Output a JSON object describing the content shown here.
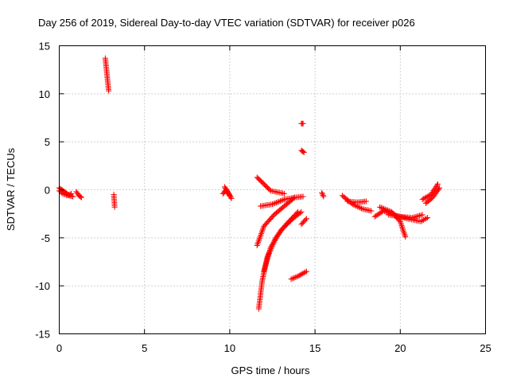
{
  "chart_data": {
    "type": "scatter",
    "title": "Day 256 of 2019, Sidereal Day-to-day VTEC variation (SDTVAR) for receiver p026",
    "xlabel": "GPS time / hours",
    "ylabel": "SDTVAR / TECUs",
    "xlim": [
      0,
      25
    ],
    "ylim": [
      -15,
      15
    ],
    "xticks": [
      0,
      5,
      10,
      15,
      20,
      25
    ],
    "yticks": [
      -15,
      -10,
      -5,
      0,
      5,
      10,
      15
    ],
    "grid": true,
    "marker": "plus",
    "color": "#ff0000",
    "arcs": [
      [
        [
          0.0,
          -0.1
        ],
        [
          0.2,
          -0.4
        ],
        [
          0.5,
          -0.6
        ],
        [
          0.7,
          -0.4
        ]
      ],
      [
        [
          0.0,
          0.2
        ],
        [
          0.3,
          -0.2
        ],
        [
          0.6,
          -0.6
        ],
        [
          0.8,
          -0.7
        ]
      ],
      [
        [
          1.0,
          -0.2
        ],
        [
          1.15,
          -0.6
        ],
        [
          1.3,
          -0.8
        ]
      ],
      [
        [
          2.7,
          13.7
        ],
        [
          2.8,
          12.0
        ],
        [
          2.9,
          10.3
        ]
      ],
      [
        [
          3.2,
          -0.5
        ],
        [
          3.25,
          -1.8
        ]
      ],
      [
        [
          9.7,
          0.3
        ],
        [
          9.9,
          -0.3
        ],
        [
          10.1,
          -0.9
        ]
      ],
      [
        [
          9.6,
          -0.4
        ],
        [
          9.8,
          0.0
        ],
        [
          10.0,
          -0.6
        ]
      ],
      [
        [
          11.6,
          1.3
        ],
        [
          12.4,
          -0.1
        ],
        [
          13.2,
          -0.4
        ]
      ],
      [
        [
          11.8,
          -1.7
        ],
        [
          12.5,
          -1.5
        ],
        [
          13.2,
          -1.0
        ],
        [
          13.8,
          -0.8
        ]
      ],
      [
        [
          11.6,
          -5.8
        ],
        [
          12.0,
          -3.8
        ],
        [
          12.6,
          -2.6
        ],
        [
          13.2,
          -1.7
        ],
        [
          13.8,
          -0.8
        ],
        [
          14.3,
          -0.7
        ]
      ],
      [
        [
          11.7,
          -12.4
        ],
        [
          11.9,
          -9.5
        ],
        [
          12.2,
          -7.0
        ],
        [
          12.7,
          -5.0
        ],
        [
          13.3,
          -3.6
        ],
        [
          14.0,
          -2.3
        ]
      ],
      [
        [
          12.0,
          -8.5
        ],
        [
          12.4,
          -6.0
        ],
        [
          13.0,
          -4.2
        ],
        [
          13.7,
          -3.0
        ],
        [
          14.2,
          -2.3
        ]
      ],
      [
        [
          13.6,
          -9.3
        ],
        [
          14.0,
          -9.0
        ],
        [
          14.5,
          -8.5
        ]
      ],
      [
        [
          14.2,
          6.9
        ],
        [
          14.3,
          6.9
        ]
      ],
      [
        [
          14.2,
          4.1
        ],
        [
          14.35,
          3.9
        ]
      ],
      [
        [
          14.2,
          -3.6
        ],
        [
          14.5,
          -3.0
        ]
      ],
      [
        [
          15.4,
          -0.3
        ],
        [
          15.5,
          -0.7
        ]
      ],
      [
        [
          16.6,
          -0.6
        ],
        [
          17.2,
          -1.5
        ],
        [
          17.8,
          -2.0
        ],
        [
          18.3,
          -2.2
        ]
      ],
      [
        [
          16.9,
          -1.2
        ],
        [
          17.5,
          -1.3
        ],
        [
          18.0,
          -1.2
        ]
      ],
      [
        [
          18.5,
          -2.8
        ],
        [
          19.0,
          -2.2
        ],
        [
          19.8,
          -2.7
        ],
        [
          20.4,
          -3.0
        ],
        [
          21.2,
          -3.3
        ],
        [
          21.6,
          -2.9
        ]
      ],
      [
        [
          18.8,
          -1.8
        ],
        [
          19.5,
          -2.3
        ],
        [
          20.0,
          -3.3
        ],
        [
          20.3,
          -4.9
        ]
      ],
      [
        [
          19.3,
          -2.6
        ],
        [
          20.0,
          -2.8
        ],
        [
          20.7,
          -2.9
        ],
        [
          21.3,
          -2.6
        ]
      ],
      [
        [
          21.3,
          -1.0
        ],
        [
          21.8,
          -0.5
        ],
        [
          22.2,
          0.6
        ]
      ],
      [
        [
          21.5,
          -1.4
        ],
        [
          21.9,
          -0.8
        ],
        [
          22.3,
          0.2
        ]
      ]
    ]
  }
}
